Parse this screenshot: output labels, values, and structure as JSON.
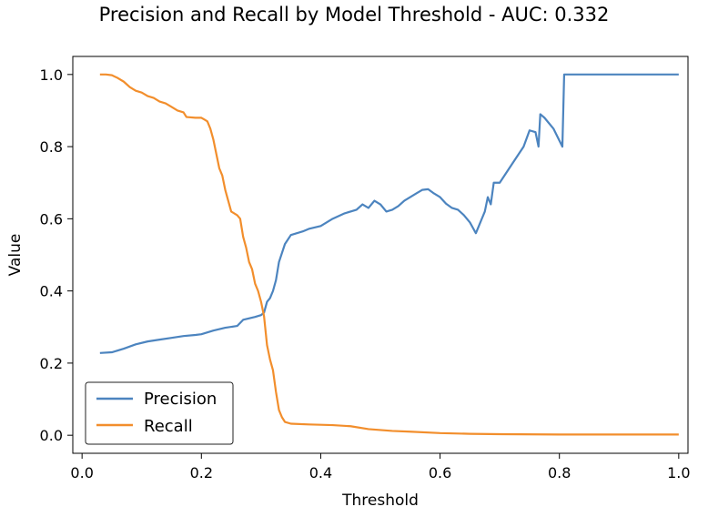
{
  "chart_data": {
    "type": "line",
    "title": "Precision and Recall by Model Threshold - AUC: 0.332",
    "xlabel": "Threshold",
    "ylabel": "Value",
    "xlim": [
      -0.0155,
      1.0155
    ],
    "ylim": [
      -0.05,
      1.05
    ],
    "xticks": [
      0.0,
      0.2,
      0.4,
      0.6,
      0.8,
      1.0
    ],
    "xtick_labels": [
      "0.0",
      "0.2",
      "0.4",
      "0.6",
      "0.8",
      "1.0"
    ],
    "yticks": [
      0.0,
      0.2,
      0.4,
      0.6,
      0.8,
      1.0
    ],
    "ytick_labels": [
      "0.0",
      "0.2",
      "0.4",
      "0.6",
      "0.8",
      "1.0"
    ],
    "grid": false,
    "legend_position": "lower-left",
    "series": [
      {
        "name": "Precision",
        "color": "#4c84bf",
        "points": [
          [
            0.03,
            0.228
          ],
          [
            0.05,
            0.23
          ],
          [
            0.07,
            0.24
          ],
          [
            0.09,
            0.252
          ],
          [
            0.11,
            0.26
          ],
          [
            0.13,
            0.265
          ],
          [
            0.15,
            0.27
          ],
          [
            0.17,
            0.275
          ],
          [
            0.19,
            0.278
          ],
          [
            0.2,
            0.28
          ],
          [
            0.22,
            0.29
          ],
          [
            0.24,
            0.298
          ],
          [
            0.26,
            0.303
          ],
          [
            0.27,
            0.32
          ],
          [
            0.29,
            0.328
          ],
          [
            0.3,
            0.333
          ],
          [
            0.305,
            0.34
          ],
          [
            0.31,
            0.37
          ],
          [
            0.315,
            0.38
          ],
          [
            0.32,
            0.4
          ],
          [
            0.325,
            0.43
          ],
          [
            0.33,
            0.48
          ],
          [
            0.34,
            0.53
          ],
          [
            0.35,
            0.555
          ],
          [
            0.36,
            0.56
          ],
          [
            0.37,
            0.565
          ],
          [
            0.38,
            0.572
          ],
          [
            0.4,
            0.58
          ],
          [
            0.42,
            0.6
          ],
          [
            0.44,
            0.615
          ],
          [
            0.46,
            0.625
          ],
          [
            0.47,
            0.64
          ],
          [
            0.48,
            0.63
          ],
          [
            0.49,
            0.65
          ],
          [
            0.5,
            0.64
          ],
          [
            0.51,
            0.62
          ],
          [
            0.52,
            0.625
          ],
          [
            0.53,
            0.635
          ],
          [
            0.54,
            0.65
          ],
          [
            0.55,
            0.66
          ],
          [
            0.56,
            0.67
          ],
          [
            0.57,
            0.68
          ],
          [
            0.58,
            0.682
          ],
          [
            0.59,
            0.67
          ],
          [
            0.6,
            0.66
          ],
          [
            0.61,
            0.642
          ],
          [
            0.62,
            0.63
          ],
          [
            0.63,
            0.625
          ],
          [
            0.64,
            0.61
          ],
          [
            0.65,
            0.59
          ],
          [
            0.655,
            0.575
          ],
          [
            0.66,
            0.56
          ],
          [
            0.665,
            0.58
          ],
          [
            0.67,
            0.6
          ],
          [
            0.675,
            0.62
          ],
          [
            0.68,
            0.66
          ],
          [
            0.685,
            0.64
          ],
          [
            0.69,
            0.7
          ],
          [
            0.7,
            0.7
          ],
          [
            0.72,
            0.75
          ],
          [
            0.74,
            0.8
          ],
          [
            0.75,
            0.845
          ],
          [
            0.76,
            0.84
          ],
          [
            0.765,
            0.8
          ],
          [
            0.768,
            0.89
          ],
          [
            0.775,
            0.88
          ],
          [
            0.79,
            0.85
          ],
          [
            0.805,
            0.8
          ],
          [
            0.808,
            1.0
          ],
          [
            0.85,
            1.0
          ],
          [
            0.9,
            1.0
          ],
          [
            0.95,
            1.0
          ],
          [
            1.0,
            1.0
          ]
        ]
      },
      {
        "name": "Recall",
        "color": "#f28e2c",
        "points": [
          [
            0.03,
            1.0
          ],
          [
            0.04,
            1.0
          ],
          [
            0.05,
            0.998
          ],
          [
            0.06,
            0.99
          ],
          [
            0.07,
            0.98
          ],
          [
            0.08,
            0.965
          ],
          [
            0.09,
            0.955
          ],
          [
            0.1,
            0.95
          ],
          [
            0.11,
            0.94
          ],
          [
            0.12,
            0.935
          ],
          [
            0.13,
            0.925
          ],
          [
            0.14,
            0.92
          ],
          [
            0.15,
            0.91
          ],
          [
            0.16,
            0.9
          ],
          [
            0.17,
            0.895
          ],
          [
            0.175,
            0.882
          ],
          [
            0.19,
            0.88
          ],
          [
            0.2,
            0.88
          ],
          [
            0.205,
            0.875
          ],
          [
            0.21,
            0.87
          ],
          [
            0.215,
            0.85
          ],
          [
            0.22,
            0.82
          ],
          [
            0.225,
            0.78
          ],
          [
            0.23,
            0.74
          ],
          [
            0.235,
            0.72
          ],
          [
            0.24,
            0.68
          ],
          [
            0.245,
            0.65
          ],
          [
            0.25,
            0.62
          ],
          [
            0.26,
            0.61
          ],
          [
            0.265,
            0.6
          ],
          [
            0.27,
            0.55
          ],
          [
            0.275,
            0.52
          ],
          [
            0.28,
            0.48
          ],
          [
            0.285,
            0.46
          ],
          [
            0.29,
            0.42
          ],
          [
            0.295,
            0.4
          ],
          [
            0.3,
            0.37
          ],
          [
            0.305,
            0.33
          ],
          [
            0.31,
            0.25
          ],
          [
            0.315,
            0.21
          ],
          [
            0.32,
            0.18
          ],
          [
            0.325,
            0.12
          ],
          [
            0.33,
            0.07
          ],
          [
            0.335,
            0.05
          ],
          [
            0.34,
            0.037
          ],
          [
            0.35,
            0.032
          ],
          [
            0.38,
            0.03
          ],
          [
            0.42,
            0.028
          ],
          [
            0.45,
            0.025
          ],
          [
            0.48,
            0.017
          ],
          [
            0.52,
            0.012
          ],
          [
            0.55,
            0.01
          ],
          [
            0.6,
            0.006
          ],
          [
            0.65,
            0.004
          ],
          [
            0.7,
            0.003
          ],
          [
            0.8,
            0.002
          ],
          [
            0.9,
            0.002
          ],
          [
            1.0,
            0.002
          ]
        ]
      }
    ]
  }
}
